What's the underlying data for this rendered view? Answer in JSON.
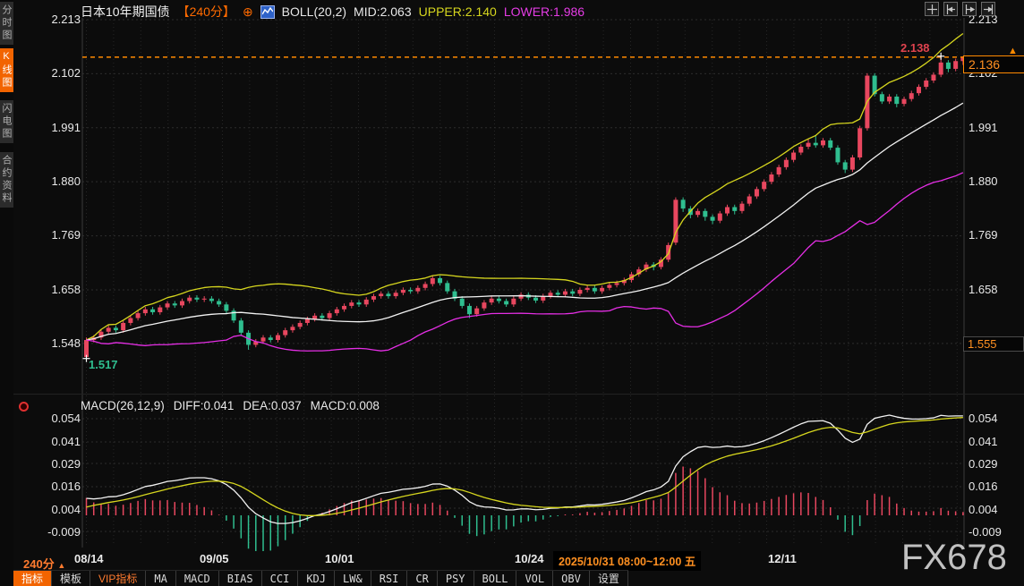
{
  "colors": {
    "background": "#0c0c0c",
    "up": "#e8475f",
    "down": "#2fbe8f",
    "boll_mid": "#f2f2f2",
    "boll_upper": "#d6d61e",
    "boll_lower": "#e52ee5",
    "diff_line": "#f2f2f2",
    "dea_line": "#d6d61e",
    "hist_pos": "#e8475f",
    "hist_neg": "#2fbe8f",
    "current_price_line": "#ff8a00",
    "accent_orange": "#ff6a00",
    "grid": "#262626",
    "axis_text": "#e8e8e8"
  },
  "sidebar": {
    "tabs": [
      {
        "label": "分时图",
        "active": false
      },
      {
        "label": "K线图",
        "active": true
      },
      {
        "label": "闪电图",
        "active": false
      },
      {
        "label": "合约资料",
        "active": false
      }
    ]
  },
  "header": {
    "instrument": "日本10年期国债",
    "period": "【240分】",
    "circle_plus_icon": "⊕",
    "boll": "BOLL(20,2)",
    "mid": "MID:2.063",
    "upper": "UPPER:2.140",
    "lower": "LOWER:1.986"
  },
  "top_icons": [
    "move",
    "scale-left",
    "scale-right",
    "pan-right"
  ],
  "price_axis": {
    "left": [
      "2.213",
      "2.102",
      "1.991",
      "1.880",
      "1.769",
      "1.658",
      "1.548"
    ],
    "right": [
      "2.213",
      "2.102",
      "1.991",
      "1.880",
      "1.769",
      "1.658",
      "1.548"
    ],
    "current_price_tag": "2.136",
    "alert_arrow": "▲",
    "low_tag": "1.555"
  },
  "annotations": {
    "high_label": "2.138",
    "low_label": "1.517"
  },
  "macd_header": {
    "title": "MACD(26,12,9)",
    "diff": "DIFF:0.041",
    "dea": "DEA:0.037",
    "macd": "MACD:0.008"
  },
  "macd_axis": {
    "left": [
      "0.054",
      "0.041",
      "0.029",
      "0.016",
      "0.004",
      "-0.009"
    ],
    "right": [
      "0.054",
      "0.041",
      "0.029",
      "0.016",
      "0.004",
      "-0.009"
    ]
  },
  "xaxis": {
    "labels": [
      "08/14",
      "09/05",
      "10/01",
      "10/24",
      "12/11"
    ],
    "highlight": "2025/10/31 08:00~12:00 五"
  },
  "bottom_left_period": "240分",
  "bottom_left_arrow": "▲",
  "bottom_toolbar": {
    "items": [
      "指标",
      "模板",
      "VIP指标",
      "MA",
      "MACD",
      "BIAS",
      "CCI",
      "KDJ",
      "LW&",
      "RSI",
      "CR",
      "PSY",
      "BOLL",
      "VOL",
      "OBV",
      "设置"
    ]
  },
  "watermark": "FX678",
  "chart_data": {
    "type": "candlestick",
    "title": "日本10年期国债 240分 K线图",
    "interval": "240分",
    "overlay_indicator": "BOLL(20,2)",
    "boll_values": {
      "mid": 2.063,
      "upper": 2.14,
      "lower": 1.986
    },
    "sub_indicator": "MACD(26,12,9)",
    "macd_values": {
      "diff": 0.041,
      "dea": 0.037,
      "macd": 0.008
    },
    "price_ticks": [
      2.213,
      2.102,
      1.991,
      1.88,
      1.769,
      1.658,
      1.548
    ],
    "macd_ticks": [
      0.054,
      0.041,
      0.029,
      0.016,
      0.004,
      -0.009
    ],
    "current_price": 2.136,
    "highest": 2.138,
    "lowest": 1.517,
    "low_axis_tag": 1.555,
    "x_tick_dates": [
      "08/14",
      "09/05",
      "10/01",
      "10/24",
      "12/11"
    ],
    "selected_bar": "2025/10/31 08:00~12:00 五",
    "candles": [
      [
        1.52,
        1.56,
        1.517,
        1.555
      ],
      [
        1.555,
        1.565,
        1.55,
        1.56
      ],
      [
        1.56,
        1.577,
        1.555,
        1.572
      ],
      [
        1.572,
        1.585,
        1.567,
        1.58
      ],
      [
        1.58,
        1.585,
        1.57,
        1.575
      ],
      [
        1.575,
        1.595,
        1.57,
        1.59
      ],
      [
        1.59,
        1.605,
        1.585,
        1.6
      ],
      [
        1.6,
        1.615,
        1.595,
        1.61
      ],
      [
        1.61,
        1.623,
        1.605,
        1.618
      ],
      [
        1.618,
        1.623,
        1.607,
        1.612
      ],
      [
        1.612,
        1.627,
        1.607,
        1.622
      ],
      [
        1.622,
        1.635,
        1.617,
        1.63
      ],
      [
        1.63,
        1.635,
        1.621,
        1.626
      ],
      [
        1.626,
        1.64,
        1.621,
        1.635
      ],
      [
        1.635,
        1.647,
        1.63,
        1.642
      ],
      [
        1.642,
        1.647,
        1.633,
        1.638
      ],
      [
        1.638,
        1.645,
        1.633,
        1.64
      ],
      [
        1.64,
        1.645,
        1.63,
        1.635
      ],
      [
        1.635,
        1.64,
        1.623,
        1.628
      ],
      [
        1.628,
        1.633,
        1.61,
        1.615
      ],
      [
        1.615,
        1.62,
        1.59,
        1.595
      ],
      [
        1.595,
        1.6,
        1.565,
        1.57
      ],
      [
        1.57,
        1.575,
        1.535,
        1.545
      ],
      [
        1.545,
        1.557,
        1.54,
        1.552
      ],
      [
        1.552,
        1.565,
        1.547,
        1.56
      ],
      [
        1.56,
        1.565,
        1.55,
        1.555
      ],
      [
        1.555,
        1.57,
        1.55,
        1.565
      ],
      [
        1.565,
        1.58,
        1.56,
        1.575
      ],
      [
        1.575,
        1.587,
        1.57,
        1.582
      ],
      [
        1.582,
        1.595,
        1.577,
        1.59
      ],
      [
        1.59,
        1.603,
        1.585,
        1.598
      ],
      [
        1.598,
        1.61,
        1.593,
        1.605
      ],
      [
        1.605,
        1.61,
        1.595,
        1.6
      ],
      [
        1.6,
        1.615,
        1.595,
        1.61
      ],
      [
        1.61,
        1.623,
        1.605,
        1.618
      ],
      [
        1.618,
        1.63,
        1.613,
        1.625
      ],
      [
        1.625,
        1.637,
        1.62,
        1.632
      ],
      [
        1.632,
        1.637,
        1.623,
        1.628
      ],
      [
        1.628,
        1.643,
        1.623,
        1.638
      ],
      [
        1.638,
        1.65,
        1.633,
        1.645
      ],
      [
        1.645,
        1.655,
        1.64,
        1.65
      ],
      [
        1.65,
        1.655,
        1.64,
        1.645
      ],
      [
        1.645,
        1.657,
        1.64,
        1.652
      ],
      [
        1.652,
        1.663,
        1.647,
        1.658
      ],
      [
        1.658,
        1.663,
        1.65,
        1.655
      ],
      [
        1.655,
        1.667,
        1.65,
        1.662
      ],
      [
        1.662,
        1.675,
        1.657,
        1.67
      ],
      [
        1.67,
        1.687,
        1.665,
        1.682
      ],
      [
        1.682,
        1.687,
        1.667,
        1.672
      ],
      [
        1.672,
        1.677,
        1.65,
        1.655
      ],
      [
        1.655,
        1.66,
        1.635,
        1.64
      ],
      [
        1.64,
        1.645,
        1.62,
        1.625
      ],
      [
        1.625,
        1.63,
        1.6,
        1.608
      ],
      [
        1.608,
        1.625,
        1.603,
        1.62
      ],
      [
        1.62,
        1.637,
        1.615,
        1.632
      ],
      [
        1.632,
        1.645,
        1.627,
        1.64
      ],
      [
        1.64,
        1.645,
        1.63,
        1.635
      ],
      [
        1.635,
        1.64,
        1.623,
        1.628
      ],
      [
        1.628,
        1.645,
        1.623,
        1.64
      ],
      [
        1.64,
        1.653,
        1.635,
        1.648
      ],
      [
        1.648,
        1.653,
        1.637,
        1.642
      ],
      [
        1.642,
        1.647,
        1.631,
        1.636
      ],
      [
        1.636,
        1.65,
        1.631,
        1.645
      ],
      [
        1.645,
        1.657,
        1.64,
        1.652
      ],
      [
        1.652,
        1.657,
        1.643,
        1.648
      ],
      [
        1.648,
        1.66,
        1.643,
        1.655
      ],
      [
        1.655,
        1.66,
        1.645,
        1.65
      ],
      [
        1.65,
        1.663,
        1.645,
        1.658
      ],
      [
        1.658,
        1.667,
        1.653,
        1.662
      ],
      [
        1.662,
        1.667,
        1.65,
        1.655
      ],
      [
        1.655,
        1.667,
        1.65,
        1.662
      ],
      [
        1.662,
        1.673,
        1.657,
        1.668
      ],
      [
        1.668,
        1.677,
        1.663,
        1.672
      ],
      [
        1.672,
        1.683,
        1.667,
        1.678
      ],
      [
        1.678,
        1.695,
        1.673,
        1.69
      ],
      [
        1.69,
        1.705,
        1.685,
        1.7
      ],
      [
        1.7,
        1.715,
        1.695,
        1.71
      ],
      [
        1.71,
        1.715,
        1.698,
        1.705
      ],
      [
        1.705,
        1.725,
        1.7,
        1.72
      ],
      [
        1.72,
        1.755,
        1.715,
        1.75
      ],
      [
        1.755,
        1.848,
        1.75,
        1.843
      ],
      [
        1.843,
        1.848,
        1.818,
        1.825
      ],
      [
        1.825,
        1.83,
        1.805,
        1.812
      ],
      [
        1.812,
        1.825,
        1.807,
        1.82
      ],
      [
        1.82,
        1.825,
        1.8,
        1.808
      ],
      [
        1.808,
        1.813,
        1.793,
        1.8
      ],
      [
        1.8,
        1.82,
        1.795,
        1.815
      ],
      [
        1.815,
        1.833,
        1.81,
        1.828
      ],
      [
        1.828,
        1.833,
        1.813,
        1.82
      ],
      [
        1.82,
        1.84,
        1.815,
        1.835
      ],
      [
        1.835,
        1.855,
        1.83,
        1.85
      ],
      [
        1.85,
        1.87,
        1.845,
        1.865
      ],
      [
        1.865,
        1.885,
        1.86,
        1.88
      ],
      [
        1.88,
        1.9,
        1.875,
        1.895
      ],
      [
        1.895,
        1.915,
        1.89,
        1.91
      ],
      [
        1.91,
        1.93,
        1.905,
        1.925
      ],
      [
        1.925,
        1.945,
        1.92,
        1.94
      ],
      [
        1.94,
        1.957,
        1.935,
        1.952
      ],
      [
        1.952,
        1.968,
        1.947,
        1.96
      ],
      [
        1.96,
        1.975,
        1.95,
        1.955
      ],
      [
        1.955,
        1.97,
        1.95,
        1.965
      ],
      [
        1.965,
        1.97,
        1.945,
        1.95
      ],
      [
        1.95,
        1.955,
        1.915,
        1.92
      ],
      [
        1.92,
        1.925,
        1.898,
        1.905
      ],
      [
        1.905,
        1.935,
        1.9,
        1.93
      ],
      [
        1.93,
        1.995,
        1.925,
        1.99
      ],
      [
        1.99,
        2.103,
        1.985,
        2.098
      ],
      [
        2.098,
        2.103,
        2.055,
        2.06
      ],
      [
        2.06,
        2.065,
        2.04,
        2.045
      ],
      [
        2.045,
        2.06,
        2.04,
        2.055
      ],
      [
        2.055,
        2.06,
        2.033,
        2.04
      ],
      [
        2.04,
        2.055,
        2.035,
        2.05
      ],
      [
        2.05,
        2.067,
        2.045,
        2.062
      ],
      [
        2.062,
        2.08,
        2.057,
        2.075
      ],
      [
        2.075,
        2.093,
        2.07,
        2.088
      ],
      [
        2.088,
        2.105,
        2.083,
        2.1
      ],
      [
        2.1,
        2.138,
        2.095,
        2.125
      ],
      [
        2.125,
        2.13,
        2.105,
        2.112
      ],
      [
        2.112,
        2.133,
        2.107,
        2.128
      ],
      [
        2.128,
        2.138,
        2.12,
        2.136
      ]
    ]
  }
}
